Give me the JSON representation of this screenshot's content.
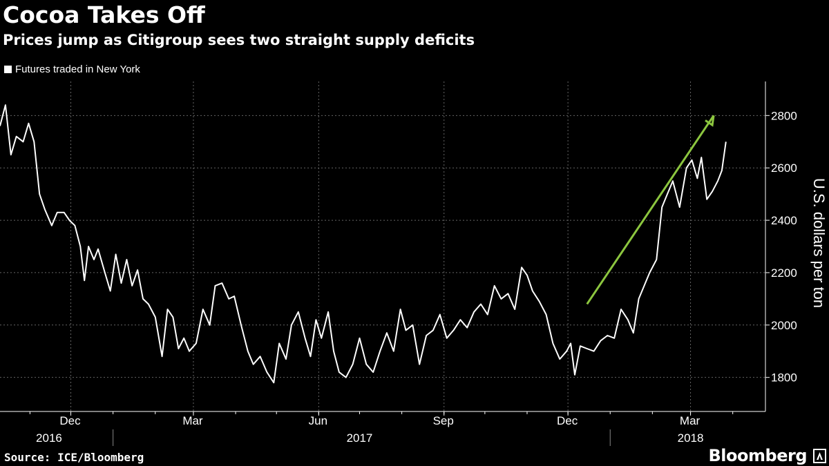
{
  "header": {
    "title": "Cocoa Takes Off",
    "subtitle": "Prices jump as Citigroup sees two straight supply deficits"
  },
  "footer": {
    "source": "Source: ICE/Bloomberg",
    "brand": "Bloomberg"
  },
  "colors": {
    "background": "#000000",
    "line": "#ffffff",
    "arrow": "#8cc63f",
    "grid": "#666666"
  },
  "chart_data": {
    "type": "line",
    "ylabel": "U.S. dollars per ton",
    "ylim": [
      1670,
      2930
    ],
    "yticks": [
      1800,
      2000,
      2200,
      2400,
      2600,
      2800
    ],
    "grid": true,
    "legend_position": "top-left",
    "xlim": [
      "2016-10-10",
      "2018-04-25"
    ],
    "x_month_ticks": [
      {
        "label": "Dec",
        "date": "2016-12-01"
      },
      {
        "label": "Mar",
        "date": "2017-03-01"
      },
      {
        "label": "Jun",
        "date": "2017-06-01"
      },
      {
        "label": "Sep",
        "date": "2017-09-01"
      },
      {
        "label": "Dec",
        "date": "2017-12-01"
      },
      {
        "label": "Mar",
        "date": "2018-03-01"
      }
    ],
    "x_year_labels": [
      {
        "label": "2016",
        "date": "2016-11-15"
      },
      {
        "label": "2017",
        "date": "2017-07-01"
      },
      {
        "label": "2018",
        "date": "2018-03-01"
      }
    ],
    "x_year_dividers": [
      "2017-01-01",
      "2018-01-01"
    ],
    "annotation_arrow": {
      "from": {
        "date": "2017-12-15",
        "value": 2080
      },
      "to": {
        "date": "2018-03-18",
        "value": 2800
      }
    },
    "series": [
      {
        "name": "Futures traded in New York",
        "points": [
          [
            "2016-10-10",
            2760
          ],
          [
            "2016-10-14",
            2840
          ],
          [
            "2016-10-18",
            2650
          ],
          [
            "2016-10-22",
            2720
          ],
          [
            "2016-10-27",
            2700
          ],
          [
            "2016-10-31",
            2770
          ],
          [
            "2016-11-04",
            2700
          ],
          [
            "2016-11-08",
            2500
          ],
          [
            "2016-11-12",
            2440
          ],
          [
            "2016-11-17",
            2380
          ],
          [
            "2016-11-21",
            2430
          ],
          [
            "2016-11-26",
            2430
          ],
          [
            "2016-11-30",
            2400
          ],
          [
            "2016-12-04",
            2380
          ],
          [
            "2016-12-08",
            2300
          ],
          [
            "2016-12-11",
            2170
          ],
          [
            "2016-12-14",
            2300
          ],
          [
            "2016-12-18",
            2250
          ],
          [
            "2016-12-21",
            2290
          ],
          [
            "2016-12-26",
            2200
          ],
          [
            "2016-12-30",
            2130
          ],
          [
            "2017-01-03",
            2270
          ],
          [
            "2017-01-07",
            2160
          ],
          [
            "2017-01-11",
            2250
          ],
          [
            "2017-01-15",
            2150
          ],
          [
            "2017-01-19",
            2210
          ],
          [
            "2017-01-23",
            2100
          ],
          [
            "2017-01-27",
            2080
          ],
          [
            "2017-02-01",
            2030
          ],
          [
            "2017-02-06",
            1880
          ],
          [
            "2017-02-10",
            2060
          ],
          [
            "2017-02-14",
            2030
          ],
          [
            "2017-02-18",
            1910
          ],
          [
            "2017-02-22",
            1950
          ],
          [
            "2017-02-26",
            1900
          ],
          [
            "2017-03-03",
            1930
          ],
          [
            "2017-03-08",
            2060
          ],
          [
            "2017-03-13",
            2000
          ],
          [
            "2017-03-17",
            2150
          ],
          [
            "2017-03-22",
            2160
          ],
          [
            "2017-03-27",
            2100
          ],
          [
            "2017-03-31",
            2110
          ],
          [
            "2017-04-05",
            2000
          ],
          [
            "2017-04-10",
            1900
          ],
          [
            "2017-04-14",
            1850
          ],
          [
            "2017-04-19",
            1880
          ],
          [
            "2017-04-24",
            1820
          ],
          [
            "2017-04-29",
            1780
          ],
          [
            "2017-05-03",
            1930
          ],
          [
            "2017-05-08",
            1870
          ],
          [
            "2017-05-12",
            2000
          ],
          [
            "2017-05-17",
            2050
          ],
          [
            "2017-05-22",
            1950
          ],
          [
            "2017-05-26",
            1880
          ],
          [
            "2017-05-30",
            2020
          ],
          [
            "2017-06-03",
            1950
          ],
          [
            "2017-06-08",
            2050
          ],
          [
            "2017-06-12",
            1900
          ],
          [
            "2017-06-16",
            1820
          ],
          [
            "2017-06-21",
            1800
          ],
          [
            "2017-06-26",
            1850
          ],
          [
            "2017-07-01",
            1950
          ],
          [
            "2017-07-06",
            1850
          ],
          [
            "2017-07-11",
            1820
          ],
          [
            "2017-07-16",
            1900
          ],
          [
            "2017-07-21",
            1970
          ],
          [
            "2017-07-26",
            1900
          ],
          [
            "2017-07-31",
            2060
          ],
          [
            "2017-08-04",
            1980
          ],
          [
            "2017-08-09",
            2000
          ],
          [
            "2017-08-14",
            1850
          ],
          [
            "2017-08-19",
            1960
          ],
          [
            "2017-08-24",
            1980
          ],
          [
            "2017-08-29",
            2040
          ],
          [
            "2017-09-03",
            1950
          ],
          [
            "2017-09-08",
            1980
          ],
          [
            "2017-09-13",
            2020
          ],
          [
            "2017-09-18",
            1990
          ],
          [
            "2017-09-23",
            2050
          ],
          [
            "2017-09-28",
            2080
          ],
          [
            "2017-10-03",
            2040
          ],
          [
            "2017-10-08",
            2150
          ],
          [
            "2017-10-13",
            2100
          ],
          [
            "2017-10-18",
            2120
          ],
          [
            "2017-10-23",
            2060
          ],
          [
            "2017-10-28",
            2220
          ],
          [
            "2017-11-01",
            2190
          ],
          [
            "2017-11-05",
            2130
          ],
          [
            "2017-11-10",
            2090
          ],
          [
            "2017-11-15",
            2040
          ],
          [
            "2017-11-20",
            1930
          ],
          [
            "2017-11-25",
            1870
          ],
          [
            "2017-11-30",
            1900
          ],
          [
            "2017-12-03",
            1930
          ],
          [
            "2017-12-06",
            1810
          ],
          [
            "2017-12-10",
            1920
          ],
          [
            "2017-12-15",
            1910
          ],
          [
            "2017-12-20",
            1900
          ],
          [
            "2017-12-25",
            1940
          ],
          [
            "2017-12-30",
            1960
          ],
          [
            "2018-01-04",
            1950
          ],
          [
            "2018-01-09",
            2060
          ],
          [
            "2018-01-14",
            2020
          ],
          [
            "2018-01-18",
            1970
          ],
          [
            "2018-01-22",
            2100
          ],
          [
            "2018-01-26",
            2150
          ],
          [
            "2018-01-30",
            2200
          ],
          [
            "2018-02-04",
            2250
          ],
          [
            "2018-02-08",
            2450
          ],
          [
            "2018-02-12",
            2500
          ],
          [
            "2018-02-16",
            2550
          ],
          [
            "2018-02-21",
            2450
          ],
          [
            "2018-02-26",
            2600
          ],
          [
            "2018-03-02",
            2630
          ],
          [
            "2018-03-06",
            2560
          ],
          [
            "2018-03-09",
            2640
          ],
          [
            "2018-03-13",
            2480
          ],
          [
            "2018-03-17",
            2510
          ],
          [
            "2018-03-21",
            2550
          ],
          [
            "2018-03-24",
            2590
          ],
          [
            "2018-03-27",
            2700
          ]
        ]
      }
    ]
  }
}
